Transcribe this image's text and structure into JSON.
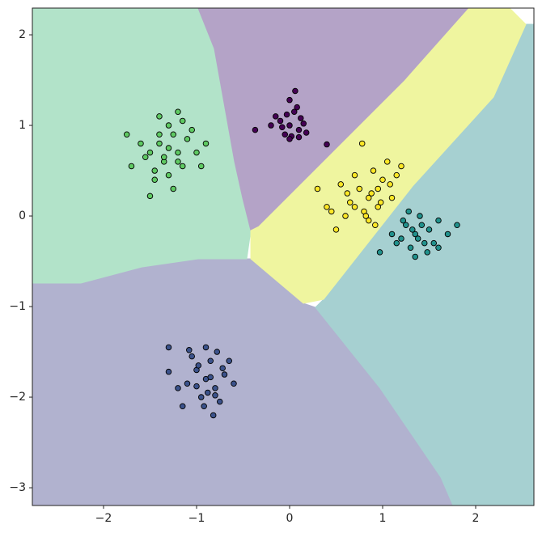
{
  "chart_data": {
    "type": "scatter",
    "xlim": [
      -2.765,
      2.626
    ],
    "ylim": [
      -3.196,
      2.295
    ],
    "xticks": [
      {
        "value": -2,
        "label": "−2"
      },
      {
        "value": -1,
        "label": "−1"
      },
      0,
      1,
      2
    ],
    "yticks": [
      {
        "value": -3,
        "label": "−3"
      },
      {
        "value": -2,
        "label": "−2"
      },
      {
        "value": -1,
        "label": "−1"
      },
      0,
      1,
      2
    ],
    "grid": false,
    "regions": [
      {
        "color": "#b1b2cf",
        "x": [
          -2.765,
          -2.243,
          -1.591,
          -0.983,
          -0.417,
          0.148,
          0.278,
          0.974,
          1.626,
          1.757,
          -2.765
        ],
        "y": [
          -0.741,
          -0.741,
          -0.563,
          -0.473,
          -0.473,
          -0.964,
          -1.009,
          -1.902,
          -2.884,
          -3.196,
          -3.196
        ]
      },
      {
        "color": "#a6d0d1",
        "x": [
          2.539,
          2.626,
          2.626,
          1.757,
          1.626,
          0.974,
          0.278,
          0.365,
          1.322,
          2.191
        ],
        "y": [
          2.116,
          2.116,
          -3.196,
          -3.196,
          -2.884,
          -1.902,
          -1.009,
          -0.92,
          0.33,
          1.313
        ]
      },
      {
        "color": "#b2e3c9",
        "x": [
          -2.765,
          -0.983,
          -0.809,
          -0.591,
          -0.504,
          -0.417,
          -0.461,
          -0.983,
          -1.591,
          -2.243,
          -2.765
        ],
        "y": [
          2.295,
          2.295,
          1.848,
          0.598,
          0.196,
          -0.161,
          -0.473,
          -0.473,
          -0.563,
          -0.741,
          -0.741
        ]
      },
      {
        "color": "#b4a3c7",
        "x": [
          -0.983,
          1.93,
          1.235,
          -0.33,
          -0.417,
          -0.504,
          -0.591,
          -0.809
        ],
        "y": [
          2.295,
          2.295,
          1.491,
          -0.116,
          -0.161,
          0.196,
          0.598,
          1.848
        ]
      },
      {
        "color": "#eff59f",
        "x": [
          1.93,
          2.365,
          2.539,
          2.191,
          1.322,
          0.365,
          0.148,
          -0.417,
          -0.417,
          -0.33,
          1.235
        ],
        "y": [
          2.295,
          2.295,
          2.116,
          1.313,
          0.33,
          -0.92,
          -0.964,
          -0.473,
          -0.161,
          -0.116,
          1.491
        ]
      }
    ],
    "series": [
      {
        "color": "#440154",
        "x": [
          0,
          -0.1,
          0.1,
          0.05,
          -0.05,
          0.15,
          -0.15,
          0.02,
          0.08,
          -0.08,
          0.12,
          -0.2,
          0.18,
          0.0,
          -0.03,
          0.06,
          0.4,
          -0.37,
          0.0,
          0.1
        ],
        "y": [
          1.0,
          1.05,
          0.95,
          1.15,
          0.9,
          1.02,
          1.1,
          0.88,
          1.2,
          0.98,
          1.08,
          1.0,
          0.92,
          1.28,
          1.12,
          1.38,
          0.79,
          0.95,
          0.85,
          0.87
        ]
      },
      {
        "color": "#3b528b",
        "x": [
          -0.9,
          -1.0,
          -0.8,
          -0.85,
          -0.95,
          -1.1,
          -0.7,
          -0.75,
          -1.05,
          -0.9,
          -0.6,
          -1.15,
          -0.82,
          -0.98,
          -0.88,
          -0.65,
          -1.2,
          -0.78,
          -0.92,
          -1.3,
          -0.85,
          -0.8,
          -1.0,
          -0.72,
          -1.08,
          -1.3
        ],
        "y": [
          -1.8,
          -1.7,
          -1.9,
          -1.6,
          -2.0,
          -1.85,
          -1.75,
          -2.05,
          -1.55,
          -1.45,
          -1.85,
          -2.1,
          -2.2,
          -1.65,
          -1.95,
          -1.6,
          -1.9,
          -1.5,
          -2.1,
          -1.72,
          -1.78,
          -1.98,
          -1.88,
          -1.68,
          -1.48,
          -1.45
        ]
      },
      {
        "color": "#21918c",
        "x": [
          1.35,
          1.25,
          1.45,
          1.3,
          1.4,
          1.5,
          1.2,
          1.6,
          1.1,
          1.55,
          1.35,
          1.28,
          1.42,
          1.7,
          0.97,
          1.15,
          1.48,
          1.38,
          1.22,
          1.6,
          1.8,
          1.32
        ],
        "y": [
          -0.2,
          -0.1,
          -0.3,
          -0.35,
          0.0,
          -0.15,
          -0.25,
          -0.05,
          -0.2,
          -0.3,
          -0.45,
          0.05,
          -0.1,
          -0.2,
          -0.4,
          -0.3,
          -0.4,
          -0.25,
          -0.05,
          -0.35,
          -0.1,
          -0.15
        ]
      },
      {
        "color": "#5ec962",
        "x": [
          -1.3,
          -1.4,
          -1.2,
          -1.35,
          -1.25,
          -1.5,
          -1.1,
          -1.45,
          -1.15,
          -1.3,
          -1.6,
          -1.0,
          -1.4,
          -1.2,
          -1.75,
          -1.7,
          -1.05,
          -1.35,
          -1.45,
          -0.9,
          -1.25,
          -1.55,
          -1.3,
          -1.5,
          -1.15,
          -0.95,
          -1.4,
          -1.2
        ],
        "y": [
          0.75,
          0.8,
          0.7,
          0.6,
          0.9,
          0.7,
          0.85,
          0.5,
          0.55,
          1.0,
          0.8,
          0.7,
          1.1,
          1.15,
          0.9,
          0.55,
          0.95,
          0.65,
          0.4,
          0.8,
          0.3,
          0.65,
          0.45,
          0.22,
          1.05,
          0.55,
          0.9,
          0.6
        ]
      },
      {
        "color": "#fde725",
        "x": [
          0.85,
          0.75,
          0.95,
          0.65,
          1.0,
          0.8,
          0.9,
          0.55,
          1.1,
          0.7,
          0.85,
          1.05,
          0.6,
          0.95,
          0.4,
          0.78,
          0.88,
          1.15,
          0.5,
          0.7,
          1.2,
          0.3,
          0.92,
          0.62,
          1.08,
          0.82,
          0.45,
          0.98
        ],
        "y": [
          0.2,
          0.3,
          0.1,
          0.15,
          0.4,
          0.05,
          0.5,
          0.35,
          0.2,
          0.45,
          -0.05,
          0.6,
          0.0,
          0.3,
          0.1,
          0.8,
          0.25,
          0.45,
          -0.15,
          0.1,
          0.55,
          0.3,
          -0.1,
          0.25,
          0.35,
          0.0,
          0.05,
          0.15
        ]
      }
    ]
  }
}
